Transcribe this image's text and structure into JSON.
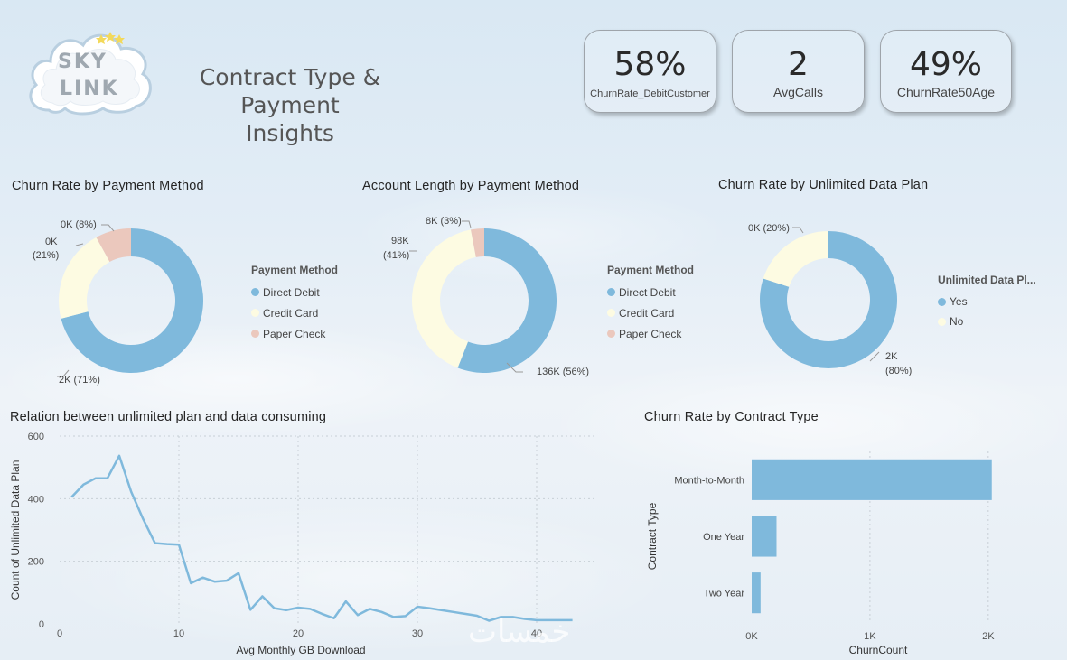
{
  "header": {
    "logo_line1": "SKY",
    "logo_line2": "LINK",
    "title_line1": "Contract Type & Payment",
    "title_line2": "Insights"
  },
  "kpis": [
    {
      "value": "58%",
      "label": "ChurnRate_DebitCustomer"
    },
    {
      "value": "2",
      "label": "AvgCalls"
    },
    {
      "value": "49%",
      "label": "ChurnRate50Age"
    }
  ],
  "colors": {
    "blue": "#7fb9dc",
    "cream": "#fdfbe2",
    "pink": "#ebc8bd"
  },
  "donut1": {
    "title": "Churn Rate by Payment Method",
    "legend_title": "Payment Method",
    "legend": [
      "Direct Debit",
      "Credit Card",
      "Paper Check"
    ],
    "labels": {
      "direct": "2K (71%)",
      "credit_a": "0K",
      "credit_b": "(21%)",
      "paper": "0K (8%)"
    }
  },
  "donut2": {
    "title": "Account Length by Payment Method",
    "legend_title": "Payment Method",
    "legend": [
      "Direct Debit",
      "Credit Card",
      "Paper Check"
    ],
    "labels": {
      "direct": "136K (56%)",
      "credit_a": "98K",
      "credit_b": "(41%)",
      "paper": "8K (3%)"
    }
  },
  "donut3": {
    "title": "Churn Rate by Unlimited Data Plan",
    "legend_title": "Unlimited Data Pl...",
    "legend": [
      "Yes",
      "No"
    ],
    "labels": {
      "yes_a": "2K",
      "yes_b": "(80%)",
      "no": "0K (20%)"
    }
  },
  "chart_data": [
    {
      "type": "pie",
      "title": "Churn Rate by Payment Method",
      "categories": [
        "Direct Debit",
        "Credit Card",
        "Paper Check"
      ],
      "values": [
        71,
        21,
        8
      ]
    },
    {
      "type": "pie",
      "title": "Account Length by Payment Method",
      "categories": [
        "Direct Debit",
        "Credit Card",
        "Paper Check"
      ],
      "values": [
        56,
        41,
        3
      ]
    },
    {
      "type": "pie",
      "title": "Churn Rate by Unlimited Data Plan",
      "categories": [
        "Yes",
        "No"
      ],
      "values": [
        80,
        20
      ]
    },
    {
      "type": "line",
      "title": "Relation between unlimited plan and data consuming",
      "xlabel": "Avg Monthly GB Download",
      "ylabel": "Count of Unlimited Data Plan",
      "xlim": [
        0,
        45
      ],
      "ylim": [
        0,
        600
      ],
      "xticks": [
        0,
        10,
        20,
        30,
        40
      ],
      "yticks": [
        0,
        200,
        400,
        600
      ],
      "x": [
        1,
        2,
        3,
        4,
        5,
        6,
        7,
        8,
        9,
        10,
        11,
        12,
        13,
        14,
        15,
        16,
        17,
        18,
        19,
        20,
        21,
        22,
        23,
        24,
        25,
        26,
        27,
        28,
        29,
        30,
        31,
        32,
        33,
        34,
        35,
        36,
        37,
        38,
        39,
        40,
        41,
        42,
        43
      ],
      "y": [
        405,
        445,
        465,
        465,
        537,
        422,
        335,
        258,
        255,
        253,
        130,
        148,
        135,
        138,
        162,
        45,
        88,
        50,
        44,
        52,
        48,
        32,
        18,
        72,
        28,
        48,
        38,
        22,
        25,
        55,
        50,
        44,
        38,
        32,
        26,
        10,
        22,
        22,
        16,
        12,
        12,
        12,
        12
      ]
    },
    {
      "type": "bar",
      "orientation": "horizontal",
      "title": "Churn Rate by Contract Type",
      "categories": [
        "Month-to-Month",
        "One Year",
        "Two Year"
      ],
      "values": [
        2030,
        210,
        75
      ],
      "xlabel": "ChurnCount",
      "ylabel": "Contract Type",
      "xlim": [
        0,
        2200
      ],
      "xticks": [
        "0K",
        "1K",
        "2K"
      ],
      "xtick_values": [
        0,
        1000,
        2000
      ]
    }
  ],
  "watermark": "خمسات"
}
